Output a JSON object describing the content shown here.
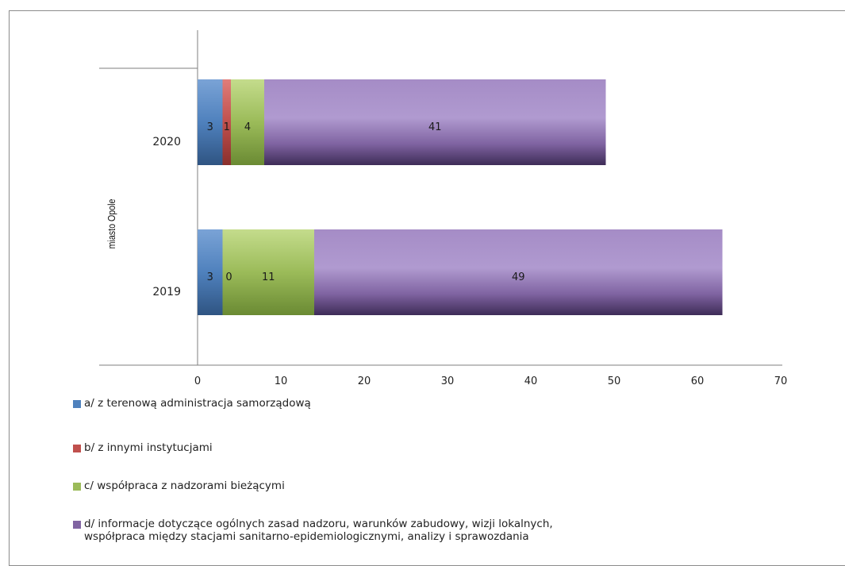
{
  "chart_data": {
    "type": "bar",
    "orientation": "horizontal",
    "stacked": true,
    "group_label": "miasto Opole",
    "categories": [
      "2020",
      "2019"
    ],
    "series": [
      {
        "name": "a/  z terenową administracja samorządową",
        "color": "#4f81bd",
        "values": [
          3,
          3
        ]
      },
      {
        "name": "b/  z innymi instytucjami",
        "color": "#c0504d",
        "values": [
          1,
          0
        ]
      },
      {
        "name": "c/ współpraca z nadzorami bieżącymi",
        "color": "#9bbb59",
        "values": [
          4,
          11
        ]
      },
      {
        "name": "d/  informacje dotyczące ogólnych zasad nadzoru, warunków zabudowy, wizji lokalnych,\nwspółpraca między stacjami sanitarno-epidemiologicznymi, analizy i sprawozdania",
        "color": "#8064a2",
        "values": [
          41,
          49
        ]
      }
    ],
    "xlim": [
      0,
      70
    ],
    "xticks": [
      0,
      10,
      20,
      30,
      40,
      50,
      60,
      70
    ],
    "grid": false,
    "legend_position": "bottom"
  }
}
